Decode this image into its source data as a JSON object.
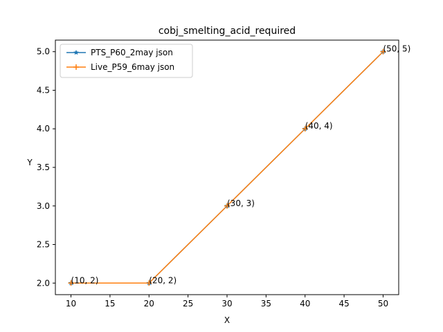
{
  "chart_data": {
    "type": "line",
    "title": "cobj_smelting_acid_required",
    "xlabel": "X",
    "ylabel": "Y",
    "xlim": [
      8,
      52
    ],
    "ylim": [
      1.85,
      5.15
    ],
    "x_ticks": [
      10,
      15,
      20,
      25,
      30,
      35,
      40,
      45,
      50
    ],
    "y_ticks": [
      2.0,
      2.5,
      3.0,
      3.5,
      4.0,
      4.5,
      5.0
    ],
    "x_tick_labels": [
      "10",
      "15",
      "20",
      "25",
      "30",
      "35",
      "40",
      "45",
      "50"
    ],
    "y_tick_labels": [
      "2.0",
      "2.5",
      "3.0",
      "3.5",
      "4.0",
      "4.5",
      "5.0"
    ],
    "grid": false,
    "legend_position": "top-left",
    "x": [
      10,
      20,
      30,
      40,
      50
    ],
    "series": [
      {
        "name": "PTS_P60_2may json",
        "values": [
          2,
          2,
          3,
          4,
          5
        ],
        "color": "#1f77b4",
        "marker": "star"
      },
      {
        "name": "Live_P59_6may json",
        "values": [
          2,
          2,
          3,
          4,
          5
        ],
        "color": "#ff7f0e",
        "marker": "plus"
      }
    ],
    "annotations": [
      "(10, 2)",
      "(20, 2)",
      "(30, 3)",
      "(40, 4)",
      "(50, 5)"
    ]
  }
}
